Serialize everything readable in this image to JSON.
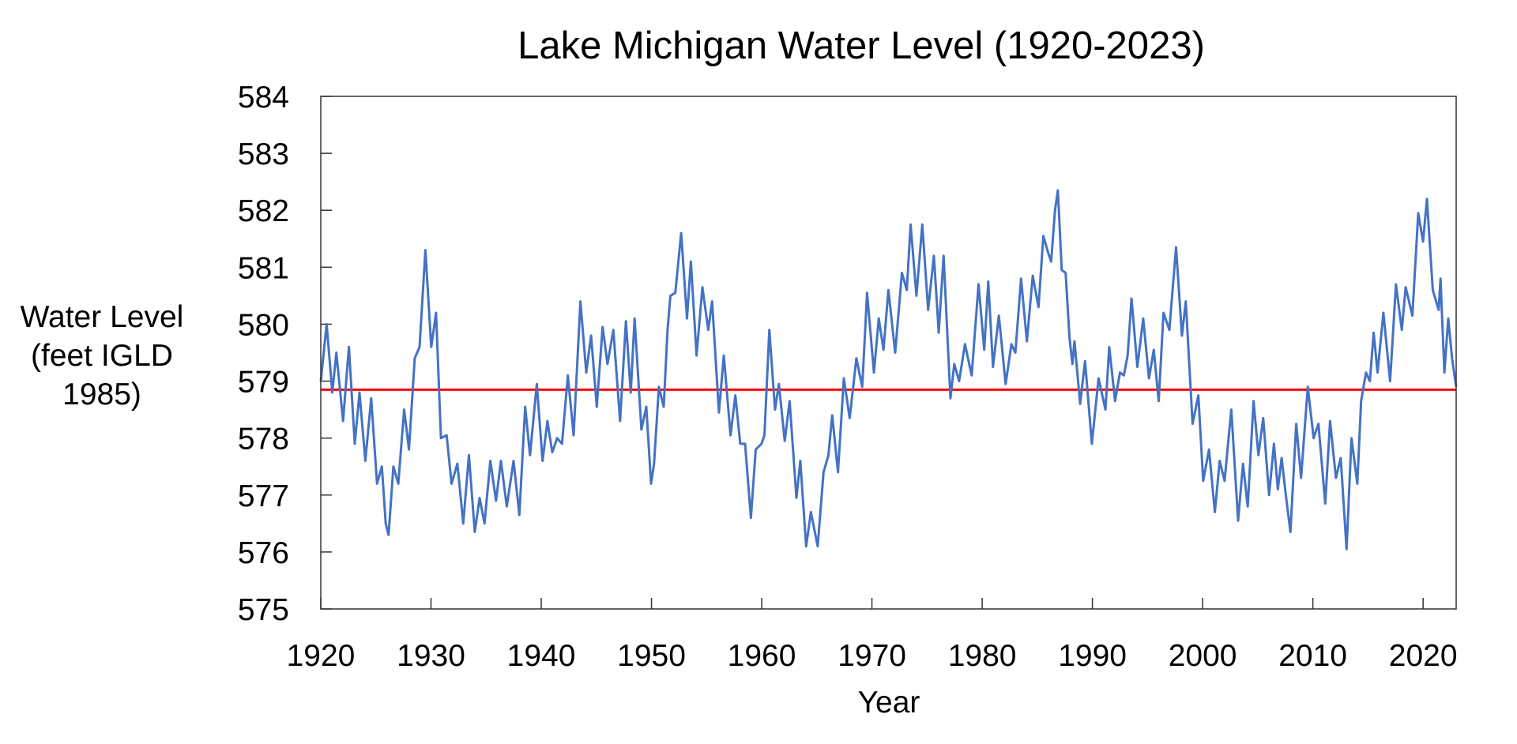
{
  "chart_data": {
    "type": "line",
    "title": "Lake Michigan Water Level (1920-2023)",
    "xlabel": "Year",
    "ylabel_lines": [
      "Water Level",
      "(feet IGLD",
      "1985)"
    ],
    "xlim": [
      1920,
      2023
    ],
    "ylim": [
      575,
      584
    ],
    "x_ticks": [
      "1920",
      "1930",
      "1940",
      "1950",
      "1960",
      "1970",
      "1980",
      "1990",
      "2000",
      "2010",
      "2020"
    ],
    "y_ticks": [
      "575",
      "576",
      "577",
      "578",
      "579",
      "580",
      "581",
      "582",
      "583",
      "584"
    ],
    "grid": false,
    "legend": "none",
    "colors": {
      "series": "#4472C4",
      "reference_line": "#FF0000",
      "axis": "#333333"
    },
    "reference_line": 578.85,
    "series": [
      {
        "x": [
          1920.0,
          1920.53,
          1921.05,
          1921.41,
          1922.02,
          1922.55,
          1923.08,
          1923.51,
          1924.04,
          1924.57,
          1925.1,
          1925.54,
          1925.89,
          1926.15,
          1926.59,
          1927.03,
          1927.56,
          1928.0,
          1928.52,
          1928.96,
          1929.49,
          1930.02,
          1930.46,
          1930.9,
          1931.42,
          1931.86,
          1932.39,
          1932.92,
          1933.44,
          1933.97,
          1934.41,
          1934.85,
          1935.38,
          1935.9,
          1936.34,
          1936.87,
          1937.49,
          1938.01,
          1938.54,
          1938.98,
          1939.6,
          1940.12,
          1940.56,
          1941.0,
          1941.44,
          1941.88,
          1942.41,
          1942.94,
          1943.55,
          1944.08,
          1944.52,
          1945.04,
          1945.57,
          1946.01,
          1946.54,
          1947.15,
          1947.68,
          1948.12,
          1948.47,
          1949.09,
          1949.53,
          1949.96,
          1950.23,
          1950.67,
          1951.11,
          1951.46,
          1951.72,
          1952.16,
          1952.69,
          1953.22,
          1953.57,
          1954.09,
          1954.62,
          1955.15,
          1955.5,
          1956.12,
          1956.56,
          1957.17,
          1957.61,
          1958.05,
          1958.49,
          1959.02,
          1959.46,
          1959.98,
          1960.25,
          1960.69,
          1961.21,
          1961.56,
          1962.09,
          1962.53,
          1963.15,
          1963.5,
          1964.03,
          1964.46,
          1965.08,
          1965.61,
          1966.05,
          1966.4,
          1966.92,
          1967.45,
          1967.98,
          1968.59,
          1969.12,
          1969.56,
          1970.18,
          1970.62,
          1971.05,
          1971.49,
          1972.11,
          1972.72,
          1973.16,
          1973.51,
          1974.04,
          1974.57,
          1975.1,
          1975.62,
          1976.06,
          1976.5,
          1977.12,
          1977.47,
          1977.91,
          1978.44,
          1979.05,
          1979.67,
          1980.19,
          1980.55,
          1980.98,
          1981.51,
          1982.13,
          1982.65,
          1983.01,
          1983.53,
          1984.06,
          1984.59,
          1985.11,
          1985.55,
          1985.99,
          1986.26,
          1986.61,
          1986.87,
          1987.22,
          1987.57,
          1987.93,
          1988.19,
          1988.37,
          1988.89,
          1989.33,
          1989.95,
          1990.56,
          1991.18,
          1991.53,
          1992.06,
          1992.5,
          1992.85,
          1993.2,
          1993.55,
          1994.08,
          1994.61,
          1995.13,
          1995.57,
          1996.01,
          1996.45,
          1996.98,
          1997.59,
          1998.12,
          1998.47,
          1999.09,
          1999.61,
          2000.05,
          2000.58,
          2001.11,
          2001.55,
          2001.99,
          2002.6,
          2003.22,
          2003.66,
          2004.09,
          2004.62,
          2005.06,
          2005.5,
          2006.03,
          2006.47,
          2006.82,
          2007.17,
          2007.52,
          2007.96,
          2008.49,
          2008.93,
          2009.54,
          2010.07,
          2010.51,
          2011.12,
          2011.56,
          2012.09,
          2012.53,
          2013.06,
          2013.5,
          2014.03,
          2014.38,
          2014.82,
          2015.17,
          2015.52,
          2015.87,
          2016.4,
          2017.01,
          2017.54,
          2018.07,
          2018.42,
          2019.03,
          2019.56,
          2020.0,
          2020.35,
          2020.88,
          2021.41,
          2021.58,
          2021.93,
          2022.28,
          2022.63,
          2023.0
        ],
        "y": [
          578.99,
          580.0,
          578.8,
          579.5,
          578.3,
          579.6,
          577.9,
          578.8,
          577.6,
          578.7,
          577.2,
          577.5,
          576.5,
          576.3,
          577.5,
          577.2,
          578.5,
          577.8,
          579.4,
          579.6,
          581.3,
          579.6,
          580.2,
          578.0,
          578.05,
          577.2,
          577.55,
          576.5,
          577.7,
          576.35,
          576.95,
          576.5,
          577.6,
          576.9,
          577.6,
          576.8,
          577.6,
          576.65,
          578.55,
          577.7,
          578.95,
          577.6,
          578.3,
          577.75,
          578.0,
          577.9,
          579.1,
          578.05,
          580.4,
          579.15,
          579.8,
          578.55,
          579.95,
          579.3,
          579.9,
          578.3,
          580.05,
          578.8,
          580.1,
          578.15,
          578.55,
          577.2,
          577.55,
          578.9,
          578.55,
          579.9,
          580.5,
          580.55,
          581.6,
          580.1,
          581.1,
          579.45,
          580.65,
          579.9,
          580.4,
          578.45,
          579.45,
          578.05,
          578.75,
          577.9,
          577.9,
          576.6,
          577.8,
          577.9,
          578.05,
          579.9,
          578.5,
          578.95,
          577.95,
          578.65,
          576.95,
          577.6,
          576.1,
          576.7,
          576.1,
          577.4,
          577.7,
          578.4,
          577.4,
          579.05,
          578.35,
          579.4,
          578.9,
          580.55,
          579.15,
          580.1,
          579.55,
          580.6,
          579.5,
          580.9,
          580.6,
          581.75,
          580.5,
          581.75,
          580.25,
          581.2,
          579.85,
          581.2,
          578.7,
          579.3,
          579.0,
          579.65,
          579.1,
          580.7,
          579.55,
          580.75,
          579.25,
          580.15,
          578.95,
          579.65,
          579.5,
          580.8,
          579.7,
          580.85,
          580.3,
          581.55,
          581.25,
          581.1,
          582.0,
          582.35,
          580.95,
          580.9,
          579.75,
          579.3,
          579.7,
          578.6,
          579.35,
          577.9,
          579.05,
          578.5,
          579.6,
          578.65,
          579.15,
          579.1,
          579.45,
          580.45,
          579.25,
          580.1,
          579.05,
          579.55,
          578.65,
          580.2,
          579.9,
          581.35,
          579.8,
          580.4,
          578.25,
          578.75,
          577.25,
          577.8,
          576.7,
          577.6,
          577.25,
          578.5,
          576.55,
          577.55,
          576.8,
          578.65,
          577.7,
          578.35,
          577.0,
          577.9,
          577.1,
          577.65,
          577.05,
          576.35,
          578.25,
          577.3,
          578.9,
          578.0,
          578.25,
          576.85,
          578.3,
          577.3,
          577.65,
          576.05,
          578.0,
          577.2,
          578.65,
          579.15,
          579.0,
          579.85,
          579.15,
          580.2,
          579.0,
          580.7,
          579.9,
          580.65,
          580.15,
          581.95,
          581.45,
          582.2,
          580.6,
          580.25,
          580.8,
          579.15,
          580.1,
          579.4,
          578.9
        ]
      }
    ]
  }
}
